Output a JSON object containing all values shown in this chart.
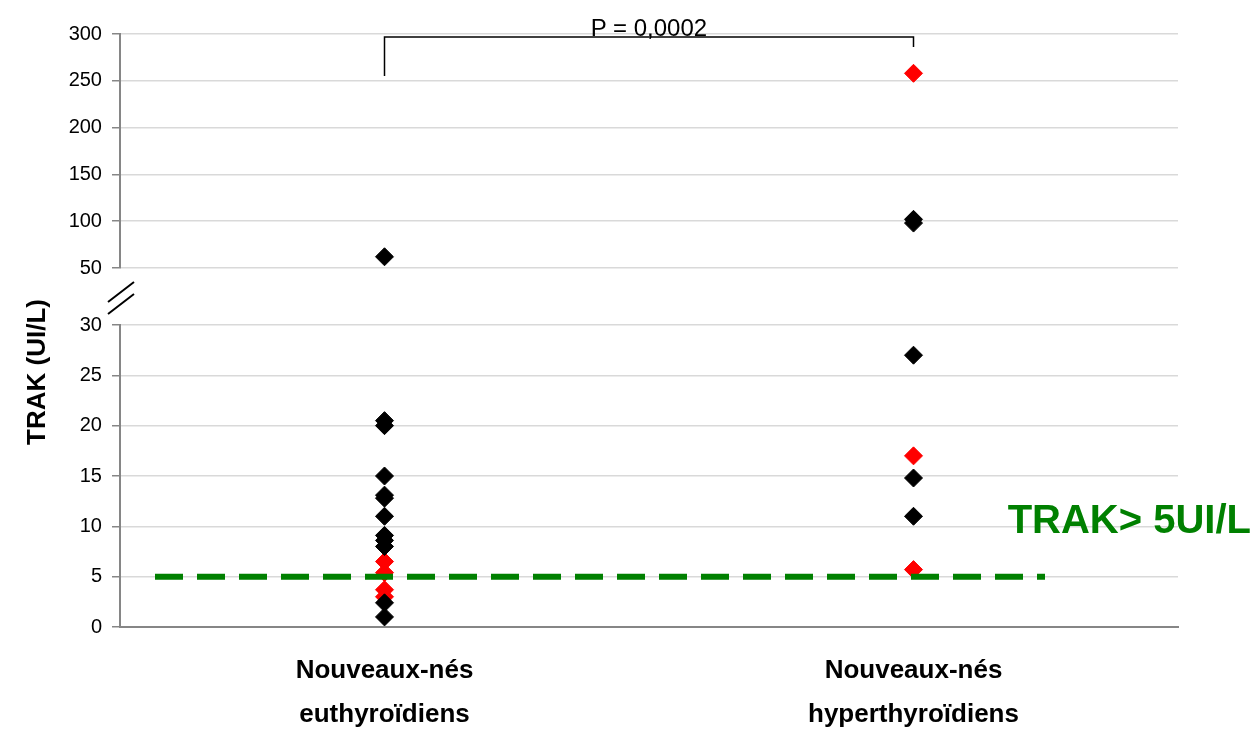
{
  "chart_data": [
    {
      "type": "scatter",
      "categories": [
        "Nouveaux-nés euthyroïdiens",
        "Nouveaux-nés hyperthyroïdiens"
      ],
      "ylim": [
        50,
        300
      ],
      "yticks": [
        50,
        100,
        150,
        200,
        250,
        300
      ],
      "grid": "y",
      "legend": false,
      "marker": "diamond",
      "tick_labels": "y",
      "annotations": [
        "P = 0,0002"
      ],
      "series": [
        {
          "color": "#000000",
          "x": [
            "Nouveaux-nés euthyroïdiens",
            "Nouveaux-nés hyperthyroïdiens",
            "Nouveaux-nés hyperthyroïdiens"
          ],
          "values": [
            62,
            102,
            98
          ]
        },
        {
          "color": "#ff0000",
          "x": [
            "Nouveaux-nés hyperthyroïdiens"
          ],
          "values": [
            258
          ]
        }
      ]
    },
    {
      "type": "scatter",
      "categories": [
        "Nouveaux-nés euthyroïdiens",
        "Nouveaux-nés hyperthyroïdiens"
      ],
      "ylabel": "TRAK (UI/L)",
      "ylim": [
        0,
        30
      ],
      "yticks": [
        0,
        5,
        10,
        15,
        20,
        25,
        30
      ],
      "grid": "y",
      "legend": false,
      "marker": "diamond",
      "ref_lines": [
        {
          "axis": "y",
          "value": 5,
          "label": "TRAK> 5UI/L",
          "color": "#008000",
          "line_style": "dashed"
        }
      ],
      "series": [
        {
          "color": "#000000",
          "x": [
            "Nouveaux-nés euthyroïdiens",
            "Nouveaux-nés euthyroïdiens",
            "Nouveaux-nés euthyroïdiens",
            "Nouveaux-nés euthyroïdiens",
            "Nouveaux-nés euthyroïdiens",
            "Nouveaux-nés euthyroïdiens",
            "Nouveaux-nés euthyroïdiens",
            "Nouveaux-nés euthyroïdiens",
            "Nouveaux-nés euthyroïdiens",
            "Nouveaux-nés euthyroïdiens",
            "Nouveaux-nés euthyroïdiens",
            "Nouveaux-nés hyperthyroïdiens",
            "Nouveaux-nés hyperthyroïdiens",
            "Nouveaux-nés hyperthyroïdiens"
          ],
          "values": [
            20.5,
            20,
            15,
            13.1,
            12.8,
            11,
            9.1,
            8.6,
            8,
            2.4,
            1,
            27,
            14.8,
            11
          ]
        },
        {
          "color": "#ff0000",
          "x": [
            "Nouveaux-nés euthyroïdiens",
            "Nouveaux-nés euthyroïdiens",
            "Nouveaux-nés euthyroïdiens",
            "Nouveaux-nés euthyroïdiens",
            "Nouveaux-nés hyperthyroïdiens",
            "Nouveaux-nés hyperthyroïdiens"
          ],
          "values": [
            6.5,
            5.4,
            3.7,
            3,
            17,
            5.7
          ]
        }
      ]
    }
  ]
}
